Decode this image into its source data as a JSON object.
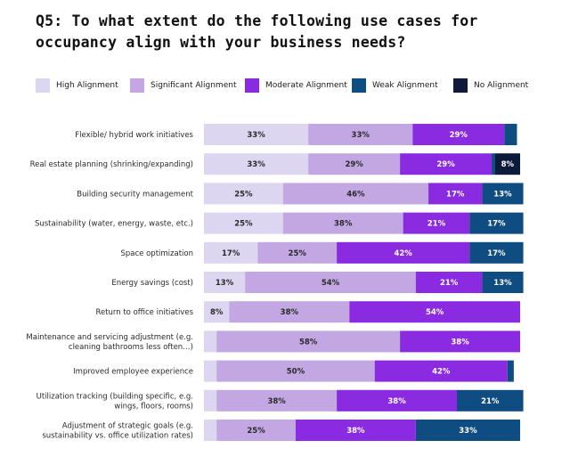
{
  "title": "Q5: To what extent do the following use cases for occupancy align with your business needs?",
  "colors": {
    "High Alignment": "#dcd6f0",
    "Significant Alignment": "#c2a7e3",
    "Moderate Alignment": "#8a2be2",
    "Weak Alignment": "#0f4c81",
    "No Alignment": "#0d1b3a"
  },
  "chart_data": {
    "type": "bar",
    "orientation": "horizontal",
    "stacked": true,
    "legend_position": "top",
    "grid": false,
    "xlim": [
      0,
      100
    ],
    "categories": [
      [
        "Flexible/ hybrid work initiatives"
      ],
      [
        "Real estate planning (shrinking/expanding)"
      ],
      [
        "Building security management"
      ],
      [
        "Sustainability (water, energy, waste, etc.)"
      ],
      [
        "Space optimization"
      ],
      [
        "Energy savings (cost)"
      ],
      [
        "Return to office initiatives"
      ],
      [
        "Maintenance and servicing adjustment (e.g.",
        "cleaning bathrooms less often…)"
      ],
      [
        "Improved employee experience"
      ],
      [
        "Utilization tracking (building specific, e.g.",
        "wings, floors, rooms)"
      ],
      [
        "Adjustment of strategic goals (e.g.",
        "sustainability vs. office utilization rates)"
      ]
    ],
    "series": [
      {
        "name": "High Alignment",
        "values": [
          33,
          33,
          25,
          25,
          17,
          13,
          8,
          4,
          4,
          4,
          4
        ],
        "labels": [
          "33%",
          "33%",
          "25%",
          "25%",
          "17%",
          "13%",
          "8%",
          "",
          "",
          "",
          ""
        ]
      },
      {
        "name": "Significant Alignment",
        "values": [
          33,
          29,
          46,
          38,
          25,
          54,
          38,
          58,
          50,
          38,
          25
        ],
        "labels": [
          "33%",
          "29%",
          "46%",
          "38%",
          "25%",
          "54%",
          "38%",
          "58%",
          "50%",
          "38%",
          "25%"
        ]
      },
      {
        "name": "Moderate Alignment",
        "values": [
          29,
          29,
          17,
          21,
          42,
          21,
          54,
          38,
          42,
          38,
          38
        ],
        "labels": [
          "29%",
          "29%",
          "17%",
          "21%",
          "42%",
          "21%",
          "54%",
          "38%",
          "42%",
          "38%",
          "38%"
        ]
      },
      {
        "name": "Weak Alignment",
        "values": [
          4,
          1,
          13,
          17,
          17,
          13,
          0,
          0,
          2,
          21,
          33
        ],
        "labels": [
          "",
          "",
          "13%",
          "17%",
          "17%",
          "13%",
          "",
          "",
          "",
          "21%",
          "33%"
        ]
      },
      {
        "name": "No Alignment",
        "values": [
          0,
          8,
          0,
          0,
          0,
          0,
          0,
          0,
          0,
          0,
          0
        ],
        "labels": [
          "",
          "8%",
          "",
          "",
          "",
          "",
          "",
          "",
          "",
          "",
          ""
        ]
      }
    ]
  }
}
